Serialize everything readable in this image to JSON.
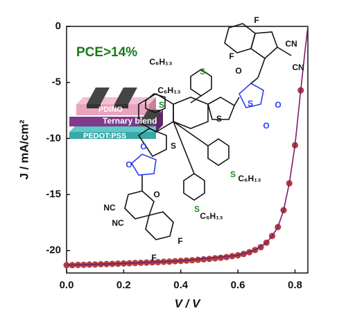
{
  "chart_data": {
    "type": "scatter",
    "xlabel": "V / V",
    "ylabel": "J / mA/cm²",
    "xlim": [
      0,
      0.845
    ],
    "ylim": [
      -22,
      0
    ],
    "xticks": [
      {
        "value": 0,
        "label": "0.0"
      },
      0.2,
      0.4,
      0.6,
      0.8
    ],
    "yticks": [
      0,
      -5,
      -10,
      -15,
      -20
    ],
    "series": [
      {
        "color": "#b0403f",
        "marker": "circle",
        "x": [
          0,
          0.02,
          0.04,
          0.06,
          0.08,
          0.1,
          0.12,
          0.14,
          0.16,
          0.18,
          0.2,
          0.22,
          0.24,
          0.26,
          0.28,
          0.3,
          0.32,
          0.34,
          0.36,
          0.38,
          0.4,
          0.42,
          0.44,
          0.46,
          0.48,
          0.5,
          0.52,
          0.54,
          0.56,
          0.58,
          0.6,
          0.62,
          0.64,
          0.66,
          0.68,
          0.7,
          0.72,
          0.74,
          0.76,
          0.78,
          0.8,
          0.82
        ],
        "values": [
          -21.3,
          -21.3,
          -21.28,
          -21.27,
          -21.25,
          -21.24,
          -21.22,
          -21.2,
          -21.19,
          -21.17,
          -21.15,
          -21.13,
          -21.11,
          -21.09,
          -21.07,
          -21.05,
          -21.03,
          -21.0,
          -20.98,
          -20.95,
          -20.92,
          -20.89,
          -20.86,
          -20.82,
          -20.78,
          -20.74,
          -20.69,
          -20.64,
          -20.58,
          -20.5,
          -20.42,
          -20.3,
          -20.15,
          -19.95,
          -19.7,
          -19.3,
          -18.7,
          -17.9,
          -16.4,
          -14.0,
          -10.6,
          -5.7
        ]
      },
      {
        "color": "#7a1a6e",
        "marker": "line",
        "x": [
          0,
          0.2,
          0.4,
          0.6,
          0.66,
          0.7,
          0.72,
          0.74,
          0.76,
          0.78,
          0.8,
          0.82,
          0.835,
          0.845
        ],
        "values": [
          -21.3,
          -21.15,
          -20.92,
          -20.42,
          -19.95,
          -19.3,
          -18.7,
          -17.9,
          -16.4,
          -14.0,
          -10.6,
          -5.7,
          -2.2,
          0
        ]
      }
    ],
    "annotations": [
      "PCE>14%",
      "PDINO",
      "Ternary blend",
      "PEDOT:PSS"
    ],
    "molecule_labels": [
      "F",
      "F",
      "CN",
      "CN",
      "O",
      "S",
      "C₆H₁₃",
      "S",
      "C₆H₁₃",
      "S",
      "O",
      "O",
      "S",
      "S",
      "O",
      "O",
      "S",
      "C₆H₁₃",
      "S",
      "C₆H₁₃",
      "NC",
      "NC",
      "O",
      "F",
      "F"
    ]
  }
}
